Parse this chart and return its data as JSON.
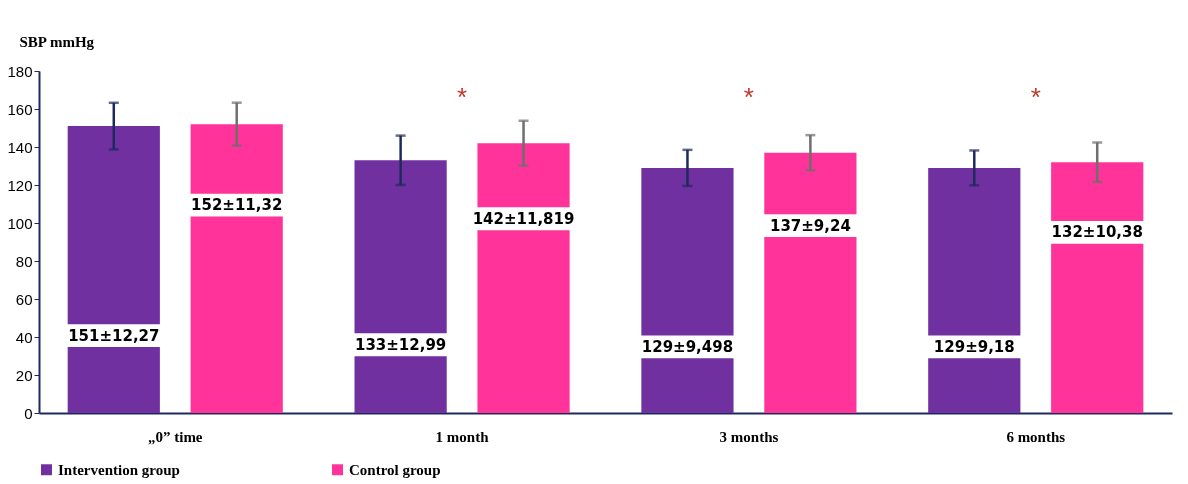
{
  "chart_data": {
    "type": "bar",
    "ylabel": "SBP mmHg",
    "categories": [
      "„0” time",
      "1 month",
      "3 months",
      "6 months"
    ],
    "series": [
      {
        "name": "Intervention group",
        "color": "#7030a0",
        "values": [
          151,
          133,
          129,
          129
        ],
        "errors": [
          12.27,
          12.99,
          9.498,
          9.18
        ],
        "value_labels": [
          "151±12,27",
          "133±12,99",
          "129±9,498",
          "129±9,18"
        ]
      },
      {
        "name": "Control group",
        "color": "#ff3399",
        "values": [
          152,
          142,
          137,
          132
        ],
        "errors": [
          11.32,
          11.819,
          9.24,
          10.38
        ],
        "value_labels": [
          "152±11,32",
          "142±11,819",
          "137±9,24",
          "132±10,38"
        ]
      }
    ],
    "ylim": [
      0,
      180
    ],
    "yticks": [
      0,
      20,
      40,
      60,
      80,
      100,
      120,
      140,
      160,
      180
    ],
    "grid": false,
    "legend": "bottom",
    "annotations": [
      "*",
      "*",
      "*"
    ]
  }
}
